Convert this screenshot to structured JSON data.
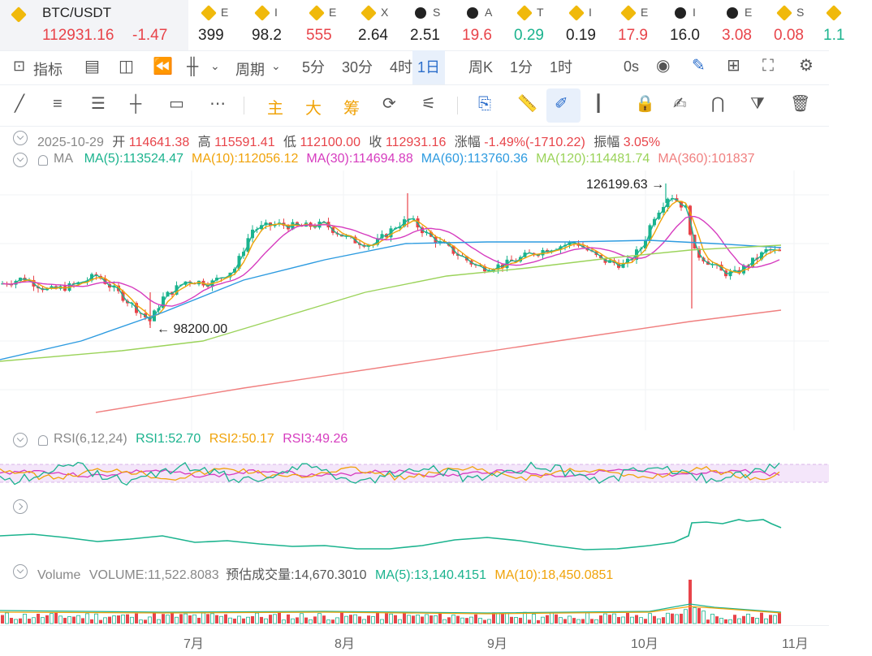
{
  "ticker": {
    "symbol": "BTC/USDT",
    "price": "112931.16",
    "change": "-1.47",
    "items": [
      {
        "sym": "E",
        "val": "399",
        "color": "dark",
        "logo": "gold"
      },
      {
        "sym": "I",
        "val": "98.2",
        "color": "dark",
        "logo": "gold"
      },
      {
        "sym": "E",
        "val": "555",
        "color": "red",
        "logo": "gold"
      },
      {
        "sym": "X",
        "val": "2.64",
        "color": "dark",
        "logo": "gold"
      },
      {
        "sym": "S",
        "val": "2.51",
        "color": "dark",
        "logo": "dark"
      },
      {
        "sym": "A",
        "val": "19.6",
        "color": "red",
        "logo": "dark"
      },
      {
        "sym": "T",
        "val": "0.29",
        "color": "green",
        "logo": "gold"
      },
      {
        "sym": "I",
        "val": "0.19",
        "color": "dark",
        "logo": "gold"
      },
      {
        "sym": "E",
        "val": "17.9",
        "color": "red",
        "logo": "gold"
      },
      {
        "sym": "I",
        "val": "16.0",
        "color": "dark",
        "logo": "dark"
      },
      {
        "sym": "E",
        "val": "3.08",
        "color": "red",
        "logo": "dark"
      },
      {
        "sym": "S",
        "val": "0.08",
        "color": "red",
        "logo": "gold"
      },
      {
        "sym": "",
        "val": "1.1",
        "color": "green",
        "logo": "gold"
      }
    ]
  },
  "toolbar": {
    "indicators": "指标",
    "period": "周期",
    "intervals": [
      "5分",
      "30分",
      "4时",
      "1日",
      "周K",
      "1分",
      "1时"
    ],
    "active_interval": "1日",
    "countdown": "0s"
  },
  "drawbar": {
    "main": "主",
    "big": "大",
    "chips": "筹"
  },
  "ohlc": {
    "date": "2025-10-29",
    "open_label": "开",
    "open": "114641.38",
    "high_label": "高",
    "high": "115591.41",
    "low_label": "低",
    "low": "112100.00",
    "close_label": "收",
    "close": "112931.16",
    "change_label": "涨幅",
    "change": "-1.49%(-1710.22)",
    "amp_label": "振幅",
    "amp": "3.05%"
  },
  "ma": {
    "label": "MA",
    "items": [
      {
        "text": "MA(5):113524.47",
        "color": "#1bb38e"
      },
      {
        "text": "MA(10):112056.12",
        "color": "#f0a30a"
      },
      {
        "text": "MA(30):114694.88",
        "color": "#d63cbf"
      },
      {
        "text": "MA(60):113760.36",
        "color": "#2d9be0"
      },
      {
        "text": "MA(120):114481.74",
        "color": "#9bd35a"
      },
      {
        "text": "MA(360):101837",
        "color": "#f07f7f"
      }
    ]
  },
  "annotations": {
    "high": "126199.63",
    "low": "98200.00"
  },
  "rsi": {
    "label": "RSI(6,12,24)",
    "rsi1": "RSI1:52.70",
    "rsi2": "RSI2:50.17",
    "rsi3": "RSI3:49.26"
  },
  "volume": {
    "label": "Volume",
    "volume": "VOLUME:11,522.8083",
    "estimate": "预估成交量:14,670.3010",
    "ma5": "MA(5):13,140.4151",
    "ma10": "MA(10):18,450.0851"
  },
  "xaxis": [
    "7月",
    "8月",
    "9月",
    "10月",
    "11月"
  ],
  "colors": {
    "up": "#1bb38e",
    "down": "#e8444a",
    "accent": "#f0b90b",
    "active": "#2c6ecb"
  },
  "chart_data": {
    "type": "candlestick",
    "period": "1D",
    "annotated_high": 126199.63,
    "annotated_low": 98200.0,
    "last": {
      "date": "2025-10-29",
      "open": 114641.38,
      "high": 115591.41,
      "low": 112100.0,
      "close": 112931.16
    },
    "moving_averages": {
      "MA5": 113524.47,
      "MA10": 112056.12,
      "MA30": 114694.88,
      "MA60": 113760.36,
      "MA120": 114481.74
    },
    "rsi": {
      "RSI1": 52.7,
      "RSI2": 50.17,
      "RSI3": 49.26
    },
    "volume": {
      "VOLUME": 11522.8083,
      "estimate": 14670.301,
      "MA5": 13140.4151,
      "MA10": 18450.0851
    }
  }
}
